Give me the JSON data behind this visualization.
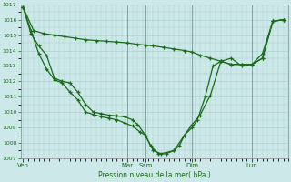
{
  "bg_color": "#cde8e8",
  "grid_color": "#aacccc",
  "line_color": "#1a6b1a",
  "xlabel": "Pression niveau de la mer( hPa )",
  "ylim": [
    1007,
    1017
  ],
  "ytick_vals": [
    1007,
    1008,
    1009,
    1010,
    1011,
    1012,
    1013,
    1014,
    1015,
    1016,
    1017
  ],
  "xtick_labels": [
    "Ven",
    "Mar",
    "Sam",
    "Dim",
    "Lun"
  ],
  "xtick_pos": [
    0.0,
    0.4,
    0.47,
    0.65,
    0.88
  ],
  "vline_x": [
    0.4,
    0.47,
    0.65,
    0.88
  ],
  "line1_x": [
    0.0,
    0.04,
    0.08,
    0.12,
    0.16,
    0.2,
    0.24,
    0.28,
    0.32,
    0.36,
    0.4,
    0.44,
    0.47,
    0.5,
    0.54,
    0.58,
    0.62,
    0.65,
    0.68,
    0.72,
    0.76,
    0.8,
    0.84,
    0.88,
    0.92,
    0.96,
    1.0
  ],
  "line1_y": [
    1016.8,
    1015.3,
    1015.1,
    1015.0,
    1014.9,
    1014.8,
    1014.7,
    1014.65,
    1014.6,
    1014.55,
    1014.5,
    1014.4,
    1014.35,
    1014.3,
    1014.2,
    1014.1,
    1014.0,
    1013.9,
    1013.7,
    1013.5,
    1013.3,
    1013.1,
    1013.1,
    1013.1,
    1013.5,
    1015.9,
    1016.0
  ],
  "line2_x": [
    0.0,
    0.03,
    0.06,
    0.09,
    0.12,
    0.15,
    0.18,
    0.21,
    0.24,
    0.27,
    0.3,
    0.33,
    0.36,
    0.39,
    0.42,
    0.45,
    0.47,
    0.49,
    0.52,
    0.55,
    0.58,
    0.6,
    0.62,
    0.65,
    0.67,
    0.7,
    0.73,
    0.76,
    0.8,
    0.84,
    0.88,
    0.92,
    0.96,
    1.0
  ],
  "line2_y": [
    1016.8,
    1015.3,
    1013.8,
    1012.8,
    1012.1,
    1011.9,
    1011.3,
    1010.8,
    1010.0,
    1009.85,
    1009.7,
    1009.6,
    1009.5,
    1009.3,
    1009.1,
    1008.7,
    1008.5,
    1007.8,
    1007.3,
    1007.3,
    1007.5,
    1007.8,
    1008.5,
    1009.0,
    1009.5,
    1011.0,
    1013.0,
    1013.3,
    1013.1,
    1013.1,
    1013.1,
    1013.5,
    1015.9,
    1016.0
  ],
  "line3_x": [
    0.0,
    0.03,
    0.06,
    0.09,
    0.12,
    0.15,
    0.18,
    0.21,
    0.24,
    0.27,
    0.3,
    0.33,
    0.36,
    0.39,
    0.42,
    0.44,
    0.47,
    0.5,
    0.53,
    0.58,
    0.62,
    0.65,
    0.68,
    0.72,
    0.76,
    0.8,
    0.84,
    0.88,
    0.92,
    0.96,
    1.0
  ],
  "line3_y": [
    1016.8,
    1015.1,
    1014.3,
    1013.7,
    1012.2,
    1012.0,
    1011.9,
    1011.3,
    1010.5,
    1010.0,
    1009.9,
    1009.8,
    1009.75,
    1009.7,
    1009.5,
    1009.2,
    1008.5,
    1007.5,
    1007.3,
    1007.5,
    1008.5,
    1009.2,
    1009.8,
    1011.1,
    1013.3,
    1013.5,
    1013.0,
    1013.1,
    1013.8,
    1015.9,
    1016.0
  ]
}
